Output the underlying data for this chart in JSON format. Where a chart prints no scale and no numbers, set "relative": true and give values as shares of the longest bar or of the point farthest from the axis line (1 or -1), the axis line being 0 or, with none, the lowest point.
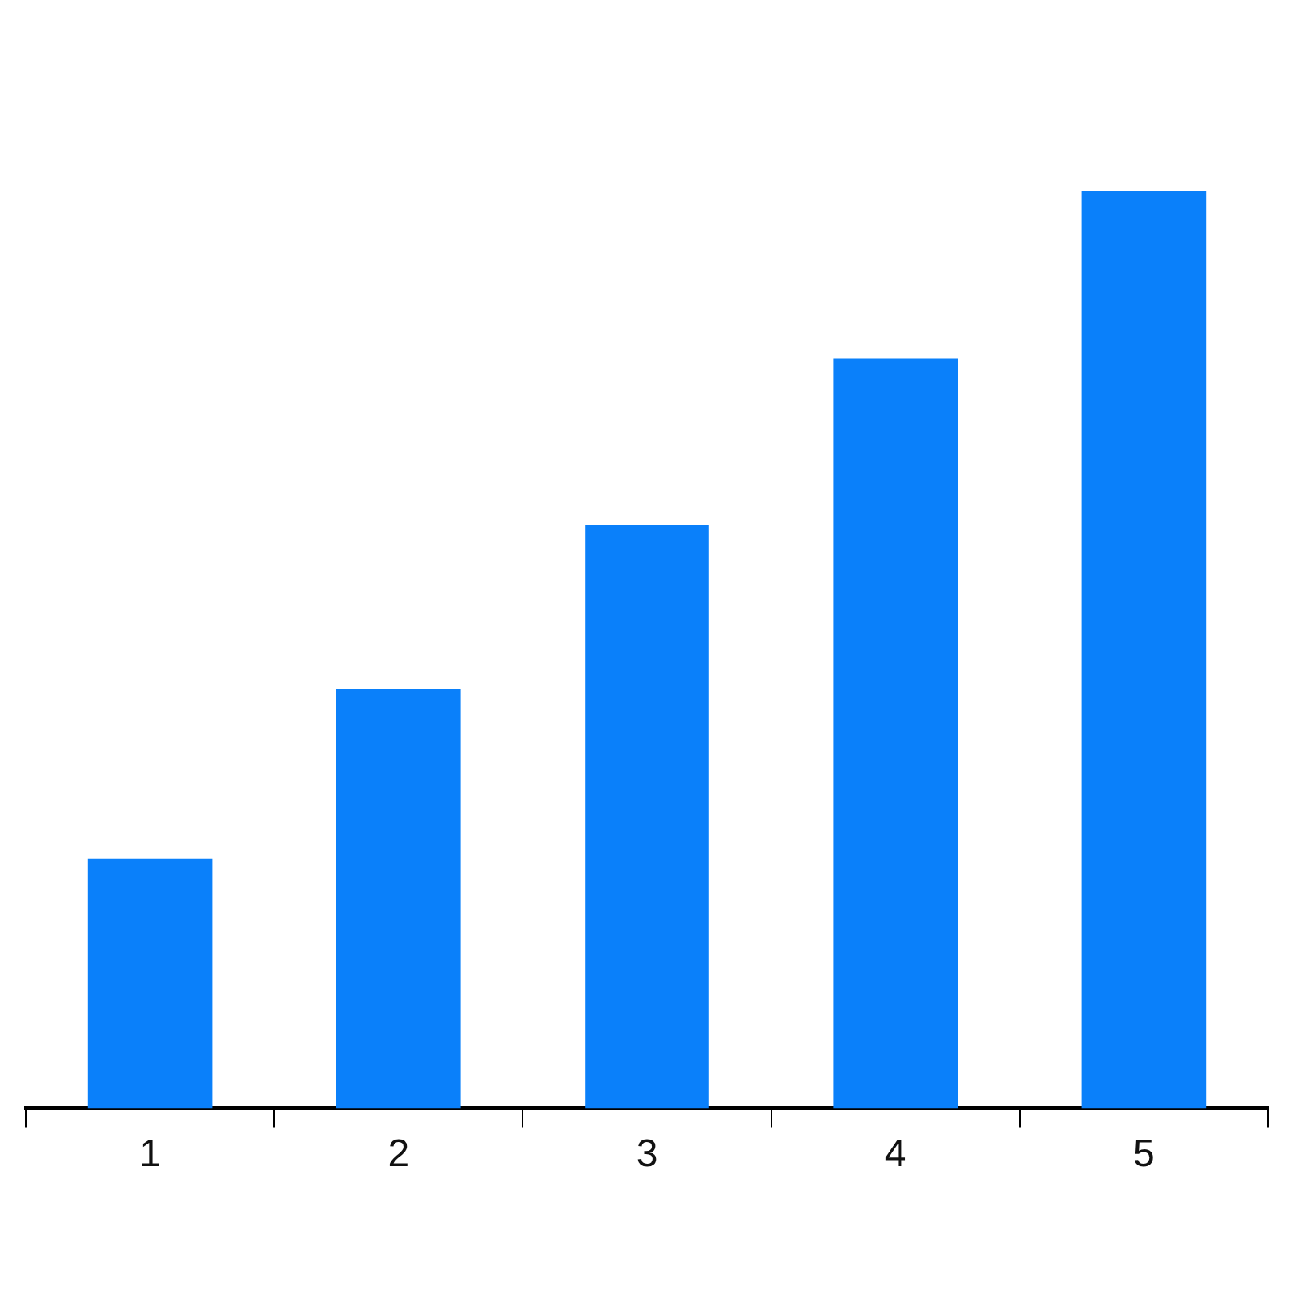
{
  "chart_data": {
    "type": "bar",
    "relative": true,
    "categories": [
      "1",
      "2",
      "3",
      "4",
      "5"
    ],
    "values": [
      0.272,
      0.457,
      0.636,
      0.817,
      1
    ],
    "color": "#0a80fa"
  }
}
